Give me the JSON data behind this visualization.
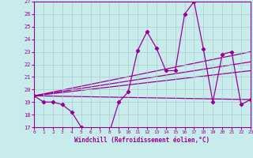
{
  "xlabel": "Windchill (Refroidissement éolien,°C)",
  "bg_color": "#c8ecec",
  "line_color": "#990099",
  "grid_color": "#aacccc",
  "xlim": [
    0,
    23
  ],
  "ylim": [
    17,
    27
  ],
  "xticks": [
    0,
    1,
    2,
    3,
    4,
    5,
    6,
    7,
    8,
    9,
    10,
    11,
    12,
    13,
    14,
    15,
    16,
    17,
    18,
    19,
    20,
    21,
    22,
    23
  ],
  "yticks": [
    17,
    18,
    19,
    20,
    21,
    22,
    23,
    24,
    25,
    26,
    27
  ],
  "series1_x": [
    0,
    1,
    2,
    3,
    4,
    5,
    6,
    7,
    8,
    9,
    10,
    11,
    12,
    13,
    14,
    15,
    16,
    17,
    18,
    19,
    20,
    21,
    22,
    23
  ],
  "series1_y": [
    19.5,
    19.0,
    19.0,
    18.8,
    18.2,
    17.0,
    16.6,
    16.6,
    16.6,
    19.0,
    19.8,
    23.1,
    24.6,
    23.3,
    21.5,
    21.5,
    26.0,
    27.0,
    23.2,
    19.0,
    22.8,
    23.0,
    18.8,
    19.2
  ],
  "trend1_x": [
    0,
    23
  ],
  "trend1_y": [
    19.5,
    19.2
  ],
  "trend2_x": [
    0,
    23
  ],
  "trend2_y": [
    19.5,
    21.5
  ],
  "trend3_x": [
    0,
    23
  ],
  "trend3_y": [
    19.5,
    22.2
  ],
  "trend4_x": [
    0,
    23
  ],
  "trend4_y": [
    19.5,
    23.0
  ]
}
